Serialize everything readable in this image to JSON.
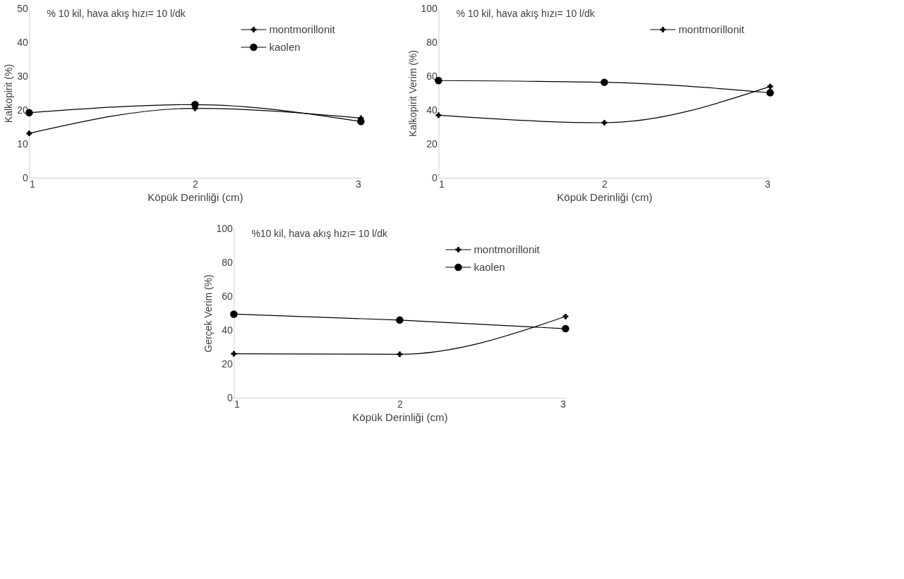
{
  "chart_data": [
    {
      "type": "line",
      "annotations": [
        "% 10 kil, hava akış hızı= 10 l/dk"
      ],
      "xlabel": "Köpük Derinliği (cm)",
      "ylabel": "Kalkopirit (%)",
      "x": [
        1,
        2,
        3
      ],
      "xlim": [
        1,
        3
      ],
      "xticks": [
        1,
        2,
        3
      ],
      "ylim": [
        0,
        50
      ],
      "yticks": [
        0,
        10,
        20,
        30,
        40,
        50
      ],
      "grid": false,
      "legend": "top right",
      "series": [
        {
          "name": "montmorillonit",
          "color": "#000000",
          "marker": "cross",
          "values": [
            13.1,
            20.5,
            17.6
          ]
        },
        {
          "name": "kaolen",
          "color": "#000000",
          "marker": "circle",
          "values": [
            19.2,
            21.6,
            16.6
          ]
        }
      ]
    },
    {
      "type": "line",
      "annotations": [
        "% 10 kil, hava akış hızı= 10 l/dk"
      ],
      "xlabel": "Köpük Derinliği (cm)",
      "ylabel": "Kalkopirit Verim (%)",
      "x": [
        1,
        2,
        3
      ],
      "xlim": [
        1,
        3
      ],
      "xticks": [
        1,
        2,
        3
      ],
      "ylim": [
        0,
        100
      ],
      "yticks": [
        0,
        20,
        40,
        60,
        80,
        100
      ],
      "grid": false,
      "legend": "top right",
      "series": [
        {
          "name": "montmorillonit",
          "color": "#000000",
          "marker": "cross",
          "values": [
            36.9,
            32.5,
            53.9
          ]
        },
        {
          "color": "#000000",
          "marker": "circle",
          "values": [
            57.4,
            56.4,
            50.2
          ]
        }
      ]
    },
    {
      "type": "line",
      "annotations": [
        "%10 kil, hava akış hızı= 10 l/dk"
      ],
      "xlabel": "Köpük Derinliği (cm)",
      "ylabel": "Gerçek Verim (%)",
      "x": [
        1,
        2,
        3
      ],
      "xlim": [
        1,
        3
      ],
      "xticks": [
        1,
        2,
        3
      ],
      "ylim": [
        0,
        100
      ],
      "yticks": [
        0,
        20,
        40,
        60,
        80,
        100
      ],
      "grid": false,
      "legend": "top right",
      "series": [
        {
          "name": "montmorillonit",
          "color": "#000000",
          "marker": "cross",
          "values": [
            26.0,
            25.7,
            48.0
          ]
        },
        {
          "name": "kaolen",
          "color": "#000000",
          "marker": "circle",
          "values": [
            49.4,
            45.9,
            40.8
          ]
        }
      ]
    }
  ]
}
